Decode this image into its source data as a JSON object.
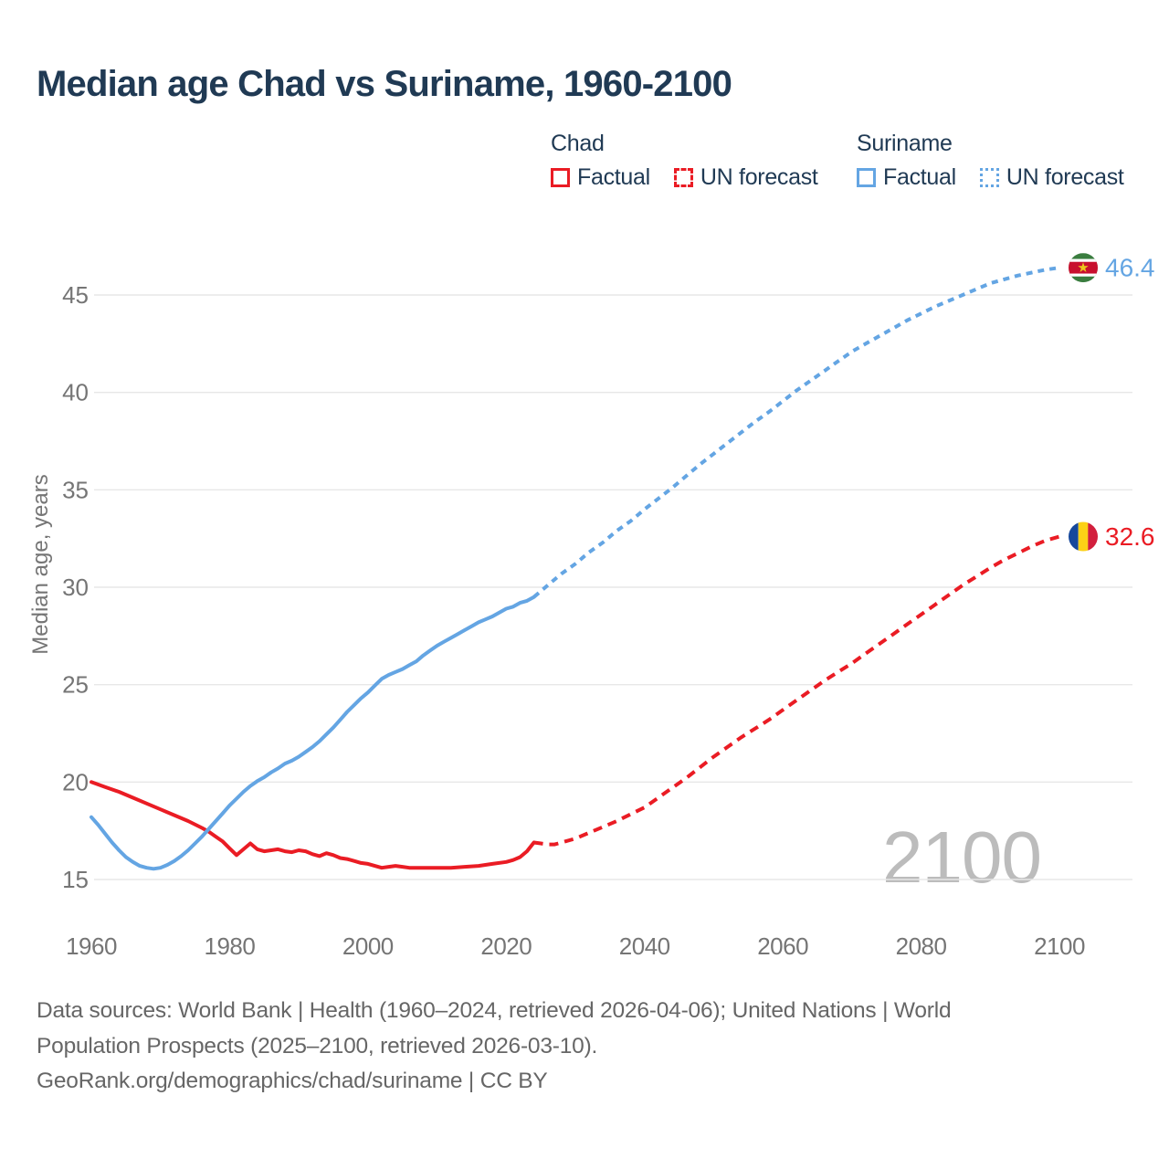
{
  "title": "Median age Chad vs Suriname, 1960-2100",
  "colors": {
    "chad": "#ea1c24",
    "suriname": "#64a5e3",
    "title_text": "#203a54",
    "axis_text": "#757575",
    "grid": "#e7e7e7",
    "footer_text": "#666666",
    "watermark": "#bcbcbc"
  },
  "legend": {
    "groups": [
      {
        "name": "Chad",
        "color_key": "chad",
        "items": [
          {
            "label": "Factual",
            "style": "solid"
          },
          {
            "label": "UN forecast",
            "style": "dashed"
          }
        ]
      },
      {
        "name": "Suriname",
        "color_key": "suriname",
        "items": [
          {
            "label": "Factual",
            "style": "solid"
          },
          {
            "label": "UN forecast",
            "style": "dotted"
          }
        ]
      }
    ]
  },
  "watermark": "2100",
  "footer": {
    "lines": [
      "Data sources: World Bank | Health (1960–2024, retrieved 2026-04-06); United Nations | World",
      "Population Prospects (2025–2100, retrieved 2026-03-10).",
      "GeoRank.org/demographics/chad/suriname | CC BY"
    ]
  },
  "chart_data": {
    "type": "line",
    "title": "Median age Chad vs Suriname, 1960-2100",
    "xlabel": "",
    "ylabel": "Median age, years",
    "xlim": [
      1960,
      2100
    ],
    "ylim": [
      15,
      45
    ],
    "xticks": [
      1960,
      1980,
      2000,
      2020,
      2040,
      2060,
      2080,
      2100
    ],
    "yticks": [
      15,
      20,
      25,
      30,
      35,
      40,
      45
    ],
    "grid": "horizontal",
    "legend_position": "top",
    "series": [
      {
        "name": "Chad factual",
        "color_key": "chad",
        "dash": false,
        "points": [
          [
            1960,
            20.0
          ],
          [
            1962,
            19.75
          ],
          [
            1964,
            19.5
          ],
          [
            1966,
            19.2
          ],
          [
            1968,
            18.9
          ],
          [
            1970,
            18.6
          ],
          [
            1972,
            18.3
          ],
          [
            1974,
            18.0
          ],
          [
            1976,
            17.65
          ],
          [
            1977,
            17.45
          ],
          [
            1978,
            17.2
          ],
          [
            1979,
            16.95
          ],
          [
            1980,
            16.6
          ],
          [
            1981,
            16.25
          ],
          [
            1982,
            16.55
          ],
          [
            1983,
            16.85
          ],
          [
            1984,
            16.55
          ],
          [
            1985,
            16.45
          ],
          [
            1986,
            16.5
          ],
          [
            1987,
            16.55
          ],
          [
            1988,
            16.45
          ],
          [
            1989,
            16.4
          ],
          [
            1990,
            16.5
          ],
          [
            1991,
            16.45
          ],
          [
            1992,
            16.3
          ],
          [
            1993,
            16.2
          ],
          [
            1994,
            16.35
          ],
          [
            1995,
            16.25
          ],
          [
            1996,
            16.1
          ],
          [
            1997,
            16.05
          ],
          [
            1998,
            15.95
          ],
          [
            1999,
            15.85
          ],
          [
            2000,
            15.8
          ],
          [
            2001,
            15.7
          ],
          [
            2002,
            15.6
          ],
          [
            2003,
            15.65
          ],
          [
            2004,
            15.7
          ],
          [
            2005,
            15.65
          ],
          [
            2006,
            15.6
          ],
          [
            2008,
            15.6
          ],
          [
            2010,
            15.6
          ],
          [
            2012,
            15.6
          ],
          [
            2014,
            15.65
          ],
          [
            2016,
            15.7
          ],
          [
            2018,
            15.8
          ],
          [
            2020,
            15.9
          ],
          [
            2021,
            16.0
          ],
          [
            2022,
            16.15
          ],
          [
            2023,
            16.45
          ],
          [
            2024,
            16.9
          ]
        ]
      },
      {
        "name": "Chad UN forecast",
        "color_key": "chad",
        "dash": true,
        "points": [
          [
            2024,
            16.9
          ],
          [
            2025,
            16.85
          ],
          [
            2026,
            16.8
          ],
          [
            2027,
            16.8
          ],
          [
            2028,
            16.9
          ],
          [
            2030,
            17.1
          ],
          [
            2032,
            17.4
          ],
          [
            2034,
            17.7
          ],
          [
            2036,
            18.0
          ],
          [
            2038,
            18.35
          ],
          [
            2040,
            18.7
          ],
          [
            2042,
            19.2
          ],
          [
            2044,
            19.7
          ],
          [
            2046,
            20.2
          ],
          [
            2048,
            20.75
          ],
          [
            2050,
            21.3
          ],
          [
            2052,
            21.8
          ],
          [
            2054,
            22.3
          ],
          [
            2056,
            22.75
          ],
          [
            2058,
            23.2
          ],
          [
            2060,
            23.7
          ],
          [
            2062,
            24.2
          ],
          [
            2064,
            24.7
          ],
          [
            2066,
            25.2
          ],
          [
            2068,
            25.65
          ],
          [
            2070,
            26.1
          ],
          [
            2072,
            26.6
          ],
          [
            2074,
            27.1
          ],
          [
            2076,
            27.6
          ],
          [
            2078,
            28.1
          ],
          [
            2080,
            28.6
          ],
          [
            2082,
            29.1
          ],
          [
            2084,
            29.6
          ],
          [
            2086,
            30.1
          ],
          [
            2088,
            30.55
          ],
          [
            2090,
            31.0
          ],
          [
            2092,
            31.4
          ],
          [
            2094,
            31.75
          ],
          [
            2096,
            32.1
          ],
          [
            2098,
            32.4
          ],
          [
            2100,
            32.6
          ]
        ]
      },
      {
        "name": "Suriname factual",
        "color_key": "suriname",
        "dash": false,
        "points": [
          [
            1960,
            18.2
          ],
          [
            1961,
            17.8
          ],
          [
            1962,
            17.35
          ],
          [
            1963,
            16.9
          ],
          [
            1964,
            16.5
          ],
          [
            1965,
            16.15
          ],
          [
            1966,
            15.9
          ],
          [
            1967,
            15.7
          ],
          [
            1968,
            15.6
          ],
          [
            1969,
            15.55
          ],
          [
            1970,
            15.6
          ],
          [
            1971,
            15.75
          ],
          [
            1972,
            15.95
          ],
          [
            1973,
            16.2
          ],
          [
            1974,
            16.5
          ],
          [
            1975,
            16.85
          ],
          [
            1976,
            17.2
          ],
          [
            1977,
            17.6
          ],
          [
            1978,
            18.0
          ],
          [
            1979,
            18.4
          ],
          [
            1980,
            18.8
          ],
          [
            1981,
            19.15
          ],
          [
            1982,
            19.5
          ],
          [
            1983,
            19.8
          ],
          [
            1984,
            20.05
          ],
          [
            1985,
            20.25
          ],
          [
            1986,
            20.5
          ],
          [
            1987,
            20.7
          ],
          [
            1988,
            20.95
          ],
          [
            1989,
            21.1
          ],
          [
            1990,
            21.3
          ],
          [
            1991,
            21.55
          ],
          [
            1992,
            21.8
          ],
          [
            1993,
            22.1
          ],
          [
            1994,
            22.45
          ],
          [
            1995,
            22.8
          ],
          [
            1996,
            23.2
          ],
          [
            1997,
            23.6
          ],
          [
            1998,
            23.95
          ],
          [
            1999,
            24.3
          ],
          [
            2000,
            24.6
          ],
          [
            2001,
            24.95
          ],
          [
            2002,
            25.3
          ],
          [
            2003,
            25.5
          ],
          [
            2004,
            25.65
          ],
          [
            2005,
            25.8
          ],
          [
            2006,
            26.0
          ],
          [
            2007,
            26.2
          ],
          [
            2008,
            26.5
          ],
          [
            2009,
            26.75
          ],
          [
            2010,
            27.0
          ],
          [
            2011,
            27.2
          ],
          [
            2012,
            27.4
          ],
          [
            2013,
            27.6
          ],
          [
            2014,
            27.8
          ],
          [
            2015,
            28.0
          ],
          [
            2016,
            28.2
          ],
          [
            2017,
            28.35
          ],
          [
            2018,
            28.5
          ],
          [
            2019,
            28.7
          ],
          [
            2020,
            28.9
          ],
          [
            2021,
            29.0
          ],
          [
            2022,
            29.2
          ],
          [
            2023,
            29.3
          ],
          [
            2024,
            29.5
          ]
        ]
      },
      {
        "name": "Suriname UN forecast",
        "color_key": "suriname",
        "dash": true,
        "points": [
          [
            2024,
            29.5
          ],
          [
            2026,
            30.1
          ],
          [
            2028,
            30.7
          ],
          [
            2030,
            31.2
          ],
          [
            2032,
            31.8
          ],
          [
            2034,
            32.3
          ],
          [
            2036,
            32.9
          ],
          [
            2038,
            33.4
          ],
          [
            2040,
            34.0
          ],
          [
            2042,
            34.55
          ],
          [
            2044,
            35.1
          ],
          [
            2046,
            35.7
          ],
          [
            2048,
            36.3
          ],
          [
            2050,
            36.85
          ],
          [
            2052,
            37.4
          ],
          [
            2054,
            37.95
          ],
          [
            2056,
            38.5
          ],
          [
            2058,
            39.0
          ],
          [
            2060,
            39.55
          ],
          [
            2062,
            40.1
          ],
          [
            2064,
            40.6
          ],
          [
            2066,
            41.1
          ],
          [
            2068,
            41.6
          ],
          [
            2070,
            42.1
          ],
          [
            2072,
            42.5
          ],
          [
            2074,
            42.9
          ],
          [
            2076,
            43.3
          ],
          [
            2078,
            43.7
          ],
          [
            2080,
            44.05
          ],
          [
            2082,
            44.4
          ],
          [
            2084,
            44.7
          ],
          [
            2086,
            45.0
          ],
          [
            2088,
            45.3
          ],
          [
            2090,
            45.6
          ],
          [
            2092,
            45.8
          ],
          [
            2094,
            46.0
          ],
          [
            2096,
            46.15
          ],
          [
            2098,
            46.3
          ],
          [
            2100,
            46.4
          ]
        ]
      }
    ],
    "end_markers": [
      {
        "series": "Suriname",
        "flag": "suriname",
        "value": 46.4,
        "label": "46.4",
        "color_key": "suriname",
        "flag_colors": {
          "green": "#3a7d3f",
          "white": "#ffffff",
          "red": "#c8102e",
          "star": "#ecc81d"
        }
      },
      {
        "series": "Chad",
        "flag": "chad",
        "value": 32.6,
        "label": "32.6",
        "color_key": "chad",
        "flag_colors": {
          "blue": "#16489c",
          "yellow": "#fcd116",
          "red": "#d21f3d"
        }
      }
    ]
  }
}
